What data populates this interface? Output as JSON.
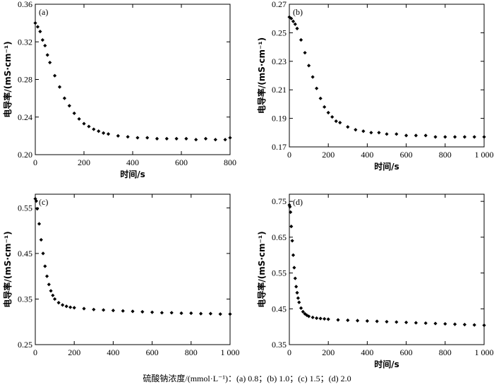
{
  "caption": "硫酸钠浓度/(mmol·L⁻¹)：(a) 0.8；(b) 1.0；(c) 1.5；(d) 2.0",
  "chart_data": [
    {
      "type": "scatter",
      "panel_label": "(a)",
      "xlabel": "时间/s",
      "ylabel": "电导率/(mS·cm⁻¹)",
      "xlim": [
        0,
        800
      ],
      "ylim": [
        0.2,
        0.36
      ],
      "xticks": [
        0,
        200,
        400,
        600,
        800
      ],
      "yticks": [
        "0.20",
        "0.24",
        "0.28",
        "0.32",
        "0.36"
      ],
      "legend": false,
      "grid": false,
      "series": [
        {
          "x": [
            0,
            10,
            20,
            30,
            40,
            50,
            60,
            80,
            100,
            120,
            140,
            160,
            180,
            200,
            220,
            240,
            260,
            280,
            300,
            340,
            380,
            420,
            460,
            500,
            540,
            580,
            620,
            660,
            700,
            740,
            780,
            800
          ],
          "y": [
            0.34,
            0.336,
            0.331,
            0.322,
            0.316,
            0.306,
            0.298,
            0.284,
            0.272,
            0.26,
            0.252,
            0.244,
            0.238,
            0.233,
            0.23,
            0.227,
            0.225,
            0.223,
            0.222,
            0.22,
            0.219,
            0.218,
            0.218,
            0.217,
            0.217,
            0.217,
            0.217,
            0.216,
            0.217,
            0.216,
            0.216,
            0.218
          ]
        }
      ]
    },
    {
      "type": "scatter",
      "panel_label": "(b)",
      "xlabel": "时间/s",
      "ylabel": "电导率/(mS·cm⁻¹)",
      "xlim": [
        0,
        1000
      ],
      "ylim": [
        0.17,
        0.27
      ],
      "xticks": [
        0,
        200,
        400,
        600,
        800,
        "1 000"
      ],
      "yticks": [
        "0.17",
        "0.19",
        "0.21",
        "0.23",
        "0.25",
        "0.27"
      ],
      "legend": false,
      "grid": false,
      "series": [
        {
          "x": [
            0,
            10,
            20,
            30,
            40,
            60,
            80,
            100,
            120,
            140,
            160,
            180,
            200,
            220,
            240,
            260,
            300,
            340,
            380,
            420,
            460,
            500,
            550,
            600,
            650,
            700,
            750,
            800,
            850,
            900,
            950,
            1000
          ],
          "y": [
            0.261,
            0.26,
            0.258,
            0.256,
            0.253,
            0.245,
            0.236,
            0.227,
            0.219,
            0.211,
            0.204,
            0.198,
            0.194,
            0.191,
            0.188,
            0.187,
            0.184,
            0.182,
            0.181,
            0.18,
            0.18,
            0.179,
            0.179,
            0.178,
            0.178,
            0.178,
            0.177,
            0.177,
            0.177,
            0.177,
            0.177,
            0.177
          ]
        }
      ]
    },
    {
      "type": "scatter",
      "panel_label": "(c)",
      "xlabel": "",
      "ylabel": "电导率/(mS·cm⁻¹)",
      "xlim": [
        0,
        1000
      ],
      "ylim": [
        0.25,
        0.58
      ],
      "xticks": [
        0,
        200,
        400,
        600,
        800,
        "1 000"
      ],
      "yticks": [
        "0.25",
        "0.35",
        "0.45",
        "0.55"
      ],
      "legend": false,
      "grid": false,
      "series": [
        {
          "x": [
            0,
            5,
            10,
            20,
            30,
            40,
            50,
            60,
            70,
            80,
            90,
            100,
            120,
            140,
            160,
            180,
            200,
            250,
            300,
            350,
            400,
            450,
            500,
            550,
            600,
            650,
            700,
            750,
            800,
            850,
            900,
            950,
            1000
          ],
          "y": [
            0.57,
            0.565,
            0.548,
            0.515,
            0.48,
            0.45,
            0.422,
            0.4,
            0.382,
            0.368,
            0.358,
            0.35,
            0.342,
            0.337,
            0.334,
            0.332,
            0.331,
            0.329,
            0.327,
            0.326,
            0.325,
            0.324,
            0.323,
            0.322,
            0.321,
            0.32,
            0.32,
            0.319,
            0.319,
            0.318,
            0.318,
            0.317,
            0.317
          ]
        }
      ]
    },
    {
      "type": "scatter",
      "panel_label": "(d)",
      "xlabel": "时间/s",
      "ylabel": "电导率/(mS·cm⁻¹)",
      "xlim": [
        0,
        1000
      ],
      "ylim": [
        0.35,
        0.77
      ],
      "xticks": [
        0,
        200,
        400,
        600,
        800,
        "1 000"
      ],
      "yticks": [
        "0.35",
        "0.45",
        "0.55",
        "0.65",
        "0.75"
      ],
      "legend": false,
      "grid": false,
      "series": [
        {
          "x": [
            0,
            3,
            6,
            10,
            15,
            20,
            25,
            30,
            35,
            40,
            45,
            50,
            60,
            70,
            80,
            90,
            100,
            120,
            140,
            160,
            180,
            200,
            250,
            300,
            350,
            400,
            450,
            500,
            550,
            600,
            650,
            700,
            750,
            800,
            850,
            900,
            950,
            1000
          ],
          "y": [
            0.74,
            0.735,
            0.72,
            0.68,
            0.64,
            0.6,
            0.565,
            0.535,
            0.512,
            0.495,
            0.48,
            0.468,
            0.452,
            0.442,
            0.436,
            0.432,
            0.429,
            0.426,
            0.424,
            0.423,
            0.422,
            0.421,
            0.419,
            0.418,
            0.417,
            0.416,
            0.415,
            0.414,
            0.413,
            0.412,
            0.411,
            0.41,
            0.409,
            0.408,
            0.407,
            0.406,
            0.405,
            0.404
          ]
        }
      ]
    }
  ]
}
